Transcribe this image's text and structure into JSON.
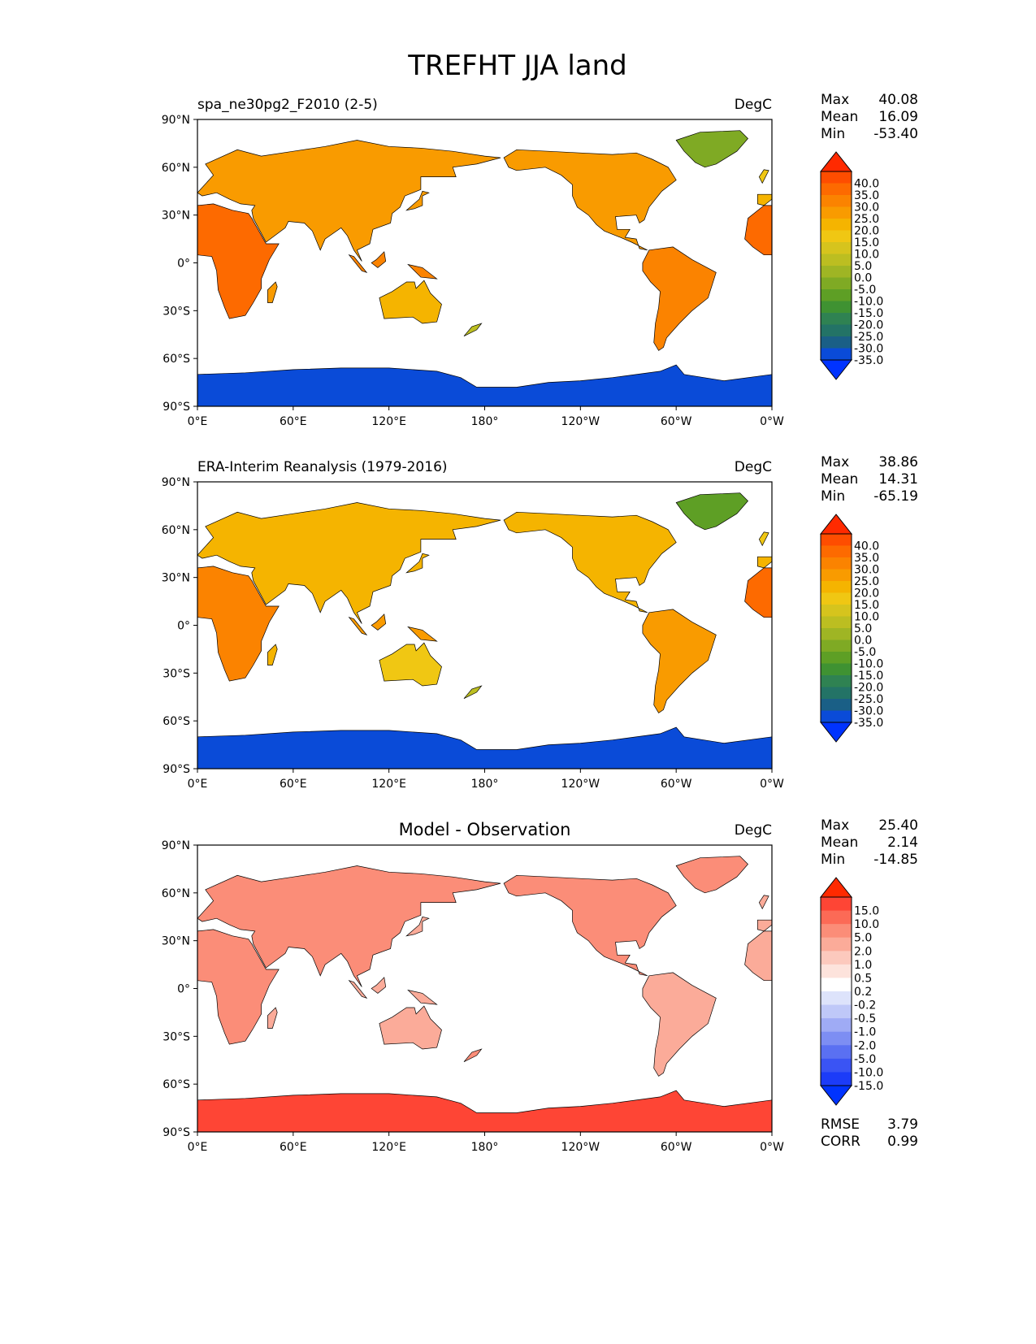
{
  "figure": {
    "title": "TREFHT JJA land"
  },
  "panels": [
    {
      "id": "test",
      "left_title": "spa_ne30pg2_F2010 (2-5)",
      "center_title": "",
      "units": "DegC",
      "stats": [
        {
          "label": "Max",
          "value": "40.08"
        },
        {
          "label": "Mean",
          "value": "16.09"
        },
        {
          "label": "Min",
          "value": "-53.40"
        }
      ],
      "colorbar_levels": [
        "40.0",
        "35.0",
        "30.0",
        "25.0",
        "20.0",
        "15.0",
        "10.0",
        "5.0",
        "0.0",
        "-5.0",
        "-10.0",
        "-15.0",
        "-20.0",
        "-25.0",
        "-30.0",
        "-35.0"
      ],
      "colorbar_colors": [
        "#ff2a00",
        "#fe4d00",
        "#fd6a00",
        "#fb8300",
        "#f99b00",
        "#f5b400",
        "#f0c713",
        "#d6c41d",
        "#bcbe21",
        "#9fb524",
        "#7faa24",
        "#5e9f25",
        "#3f9232",
        "#2f8252",
        "#237366",
        "#1a5f86",
        "#0a4bd8",
        "#0033ff"
      ],
      "field": "temp_model"
    },
    {
      "id": "reference",
      "left_title": "ERA-Interim Reanalysis (1979-2016)",
      "center_title": "",
      "units": "DegC",
      "stats": [
        {
          "label": "Max",
          "value": "38.86"
        },
        {
          "label": "Mean",
          "value": "14.31"
        },
        {
          "label": "Min",
          "value": "-65.19"
        }
      ],
      "colorbar_levels": [
        "40.0",
        "35.0",
        "30.0",
        "25.0",
        "20.0",
        "15.0",
        "10.0",
        "5.0",
        "0.0",
        "-5.0",
        "-10.0",
        "-15.0",
        "-20.0",
        "-25.0",
        "-30.0",
        "-35.0"
      ],
      "colorbar_colors": [
        "#ff2a00",
        "#fe4d00",
        "#fd6a00",
        "#fb8300",
        "#f99b00",
        "#f5b400",
        "#f0c713",
        "#d6c41d",
        "#bcbe21",
        "#9fb524",
        "#7faa24",
        "#5e9f25",
        "#3f9232",
        "#2f8252",
        "#237366",
        "#1a5f86",
        "#0a4bd8",
        "#0033ff"
      ],
      "field": "temp_obs"
    },
    {
      "id": "difference",
      "left_title": "",
      "center_title": "Model - Observation",
      "units": "DegC",
      "stats": [
        {
          "label": "Max",
          "value": "25.40"
        },
        {
          "label": "Mean",
          "value": "2.14"
        },
        {
          "label": "Min",
          "value": "-14.85"
        }
      ],
      "extra_stats": [
        {
          "label": "RMSE",
          "value": "3.79"
        },
        {
          "label": "CORR",
          "value": "0.99"
        }
      ],
      "colorbar_levels": [
        "15.0",
        "10.0",
        "5.0",
        "2.0",
        "1.0",
        "0.5",
        "0.2",
        "-0.2",
        "-0.5",
        "-1.0",
        "-2.0",
        "-5.0",
        "-10.0",
        "-15.0"
      ],
      "colorbar_colors": [
        "#ff2a00",
        "#fe4535",
        "#fc6a56",
        "#fb8d78",
        "#fbab99",
        "#fcc9bd",
        "#fde3dc",
        "#ffffff",
        "#dde3fb",
        "#bfc8f8",
        "#9fabf5",
        "#7d8ef3",
        "#5a70f2",
        "#3a54f4",
        "#1c3cf8",
        "#0033ff"
      ],
      "field": "diff"
    }
  ],
  "axes": {
    "lon_ticks": [
      "0°E",
      "60°E",
      "120°E",
      "180°",
      "120°W",
      "60°W",
      "0°W"
    ],
    "lat_ticks": [
      "90°N",
      "60°N",
      "30°N",
      "0°",
      "30°S",
      "60°S",
      "90°S"
    ]
  },
  "colors": {
    "ocean": "#ffffff",
    "coastline": "#000000"
  }
}
